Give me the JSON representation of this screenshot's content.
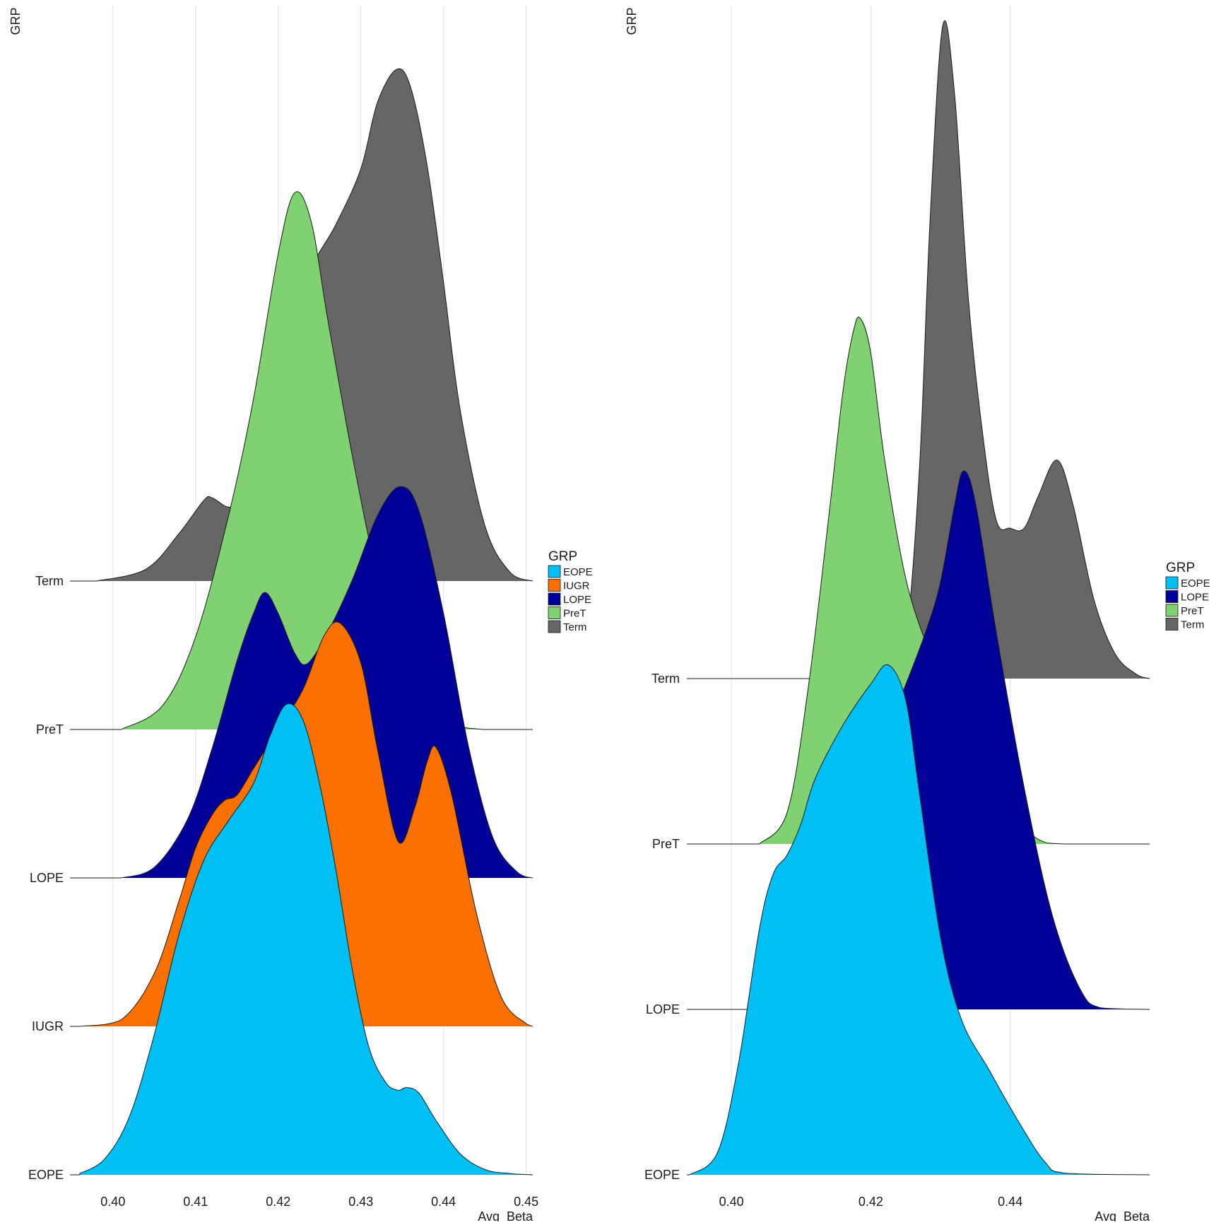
{
  "chart_data": [
    {
      "type": "ridgeline-density",
      "ylabel": "GRP",
      "xlabel": "Avg_Beta",
      "xlim": [
        0.3948,
        0.4508
      ],
      "xticks": [
        0.4,
        0.41,
        0.42,
        0.43,
        0.44,
        0.45
      ],
      "tick_labels": [
        "0.40",
        "0.41",
        "0.42",
        "0.43",
        "0.44",
        "0.45"
      ],
      "grid": "vertical-major",
      "legend": {
        "title": "GRP",
        "position": "right",
        "entries": [
          "EOPE",
          "IUGR",
          "LOPE",
          "PreT",
          "Term"
        ]
      },
      "series": [
        {
          "name": "EOPE",
          "color": "#00BFF5",
          "density_peaks": [
            {
              "x": 0.421,
              "height": 3.56
            },
            {
              "x": 0.4355,
              "height": 0.66
            }
          ],
          "points": [
            [
              0.396,
              0.01
            ],
            [
              0.399,
              0.12
            ],
            [
              0.402,
              0.44
            ],
            [
              0.405,
              1.06
            ],
            [
              0.408,
              1.82
            ],
            [
              0.411,
              2.38
            ],
            [
              0.414,
              2.68
            ],
            [
              0.417,
              2.96
            ],
            [
              0.419,
              3.32
            ],
            [
              0.421,
              3.56
            ],
            [
              0.423,
              3.44
            ],
            [
              0.425,
              2.96
            ],
            [
              0.427,
              2.3
            ],
            [
              0.429,
              1.54
            ],
            [
              0.431,
              0.96
            ],
            [
              0.433,
              0.7
            ],
            [
              0.4345,
              0.64
            ],
            [
              0.4355,
              0.66
            ],
            [
              0.437,
              0.62
            ],
            [
              0.439,
              0.42
            ],
            [
              0.442,
              0.16
            ],
            [
              0.445,
              0.04
            ],
            [
              0.448,
              0.01
            ],
            [
              0.4508,
              0.0
            ]
          ]
        },
        {
          "name": "IUGR",
          "color": "#F97000",
          "density_peaks": [
            {
              "x": 0.4135,
              "height": 1.71
            },
            {
              "x": 0.4275,
              "height": 3.05
            },
            {
              "x": 0.4391,
              "height": 2.11
            }
          ],
          "points": [
            [
              0.396,
              0.0
            ],
            [
              0.401,
              0.05
            ],
            [
              0.405,
              0.4
            ],
            [
              0.408,
              0.95
            ],
            [
              0.41,
              1.35
            ],
            [
              0.412,
              1.6
            ],
            [
              0.4135,
              1.71
            ],
            [
              0.415,
              1.75
            ],
            [
              0.417,
              1.95
            ],
            [
              0.42,
              2.25
            ],
            [
              0.423,
              2.55
            ],
            [
              0.4255,
              2.95
            ],
            [
              0.4275,
              3.05
            ],
            [
              0.43,
              2.75
            ],
            [
              0.432,
              2.1
            ],
            [
              0.4345,
              1.4
            ],
            [
              0.4365,
              1.65
            ],
            [
              0.438,
              2.0
            ],
            [
              0.4391,
              2.11
            ],
            [
              0.441,
              1.75
            ],
            [
              0.444,
              0.85
            ],
            [
              0.447,
              0.22
            ],
            [
              0.45,
              0.02
            ],
            [
              0.4508,
              0.0
            ]
          ]
        },
        {
          "name": "LOPE",
          "color": "#000099",
          "density_peaks": [
            {
              "x": 0.4184,
              "height": 2.16
            },
            {
              "x": 0.4347,
              "height": 2.96
            }
          ],
          "points": [
            [
              0.401,
              0.0
            ],
            [
              0.405,
              0.08
            ],
            [
              0.409,
              0.44
            ],
            [
              0.412,
              0.98
            ],
            [
              0.415,
              1.64
            ],
            [
              0.417,
              2.0
            ],
            [
              0.4184,
              2.16
            ],
            [
              0.42,
              2.0
            ],
            [
              0.422,
              1.7
            ],
            [
              0.4235,
              1.62
            ],
            [
              0.426,
              1.86
            ],
            [
              0.429,
              2.26
            ],
            [
              0.432,
              2.74
            ],
            [
              0.4347,
              2.96
            ],
            [
              0.437,
              2.78
            ],
            [
              0.44,
              2.0
            ],
            [
              0.443,
              1.0
            ],
            [
              0.446,
              0.3
            ],
            [
              0.449,
              0.04
            ],
            [
              0.4508,
              0.0
            ]
          ]
        },
        {
          "name": "PreT",
          "color": "#7FD172",
          "density_peaks": [
            {
              "x": 0.422,
              "height": 4.06
            }
          ],
          "points": [
            [
              0.401,
              0.0
            ],
            [
              0.406,
              0.18
            ],
            [
              0.41,
              0.7
            ],
            [
              0.414,
              1.62
            ],
            [
              0.417,
              2.5
            ],
            [
              0.42,
              3.6
            ],
            [
              0.422,
              4.06
            ],
            [
              0.424,
              3.84
            ],
            [
              0.426,
              3.1
            ],
            [
              0.429,
              2.06
            ],
            [
              0.432,
              1.16
            ],
            [
              0.435,
              0.55
            ],
            [
              0.438,
              0.18
            ],
            [
              0.441,
              0.04
            ],
            [
              0.445,
              0.0
            ],
            [
              0.4508,
              0.0
            ]
          ]
        },
        {
          "name": "Term",
          "color": "#666666",
          "density_peaks": [
            {
              "x": 0.412,
              "height": 0.63
            },
            {
              "x": 0.4343,
              "height": 3.87
            }
          ],
          "points": [
            [
              0.398,
              0.0
            ],
            [
              0.404,
              0.09
            ],
            [
              0.408,
              0.36
            ],
            [
              0.411,
              0.61
            ],
            [
              0.412,
              0.63
            ],
            [
              0.414,
              0.56
            ],
            [
              0.416,
              0.62
            ],
            [
              0.419,
              1.22
            ],
            [
              0.423,
              2.22
            ],
            [
              0.427,
              2.7
            ],
            [
              0.43,
              3.12
            ],
            [
              0.432,
              3.62
            ],
            [
              0.4343,
              3.87
            ],
            [
              0.436,
              3.74
            ],
            [
              0.438,
              3.15
            ],
            [
              0.44,
              2.26
            ],
            [
              0.442,
              1.3
            ],
            [
              0.445,
              0.42
            ],
            [
              0.448,
              0.07
            ],
            [
              0.4508,
              0.0
            ]
          ]
        }
      ]
    },
    {
      "type": "ridgeline-density",
      "ylabel": "GRP",
      "xlabel": "Avg_Beta",
      "xlim": [
        0.3936,
        0.46
      ],
      "xticks": [
        0.4,
        0.42,
        0.44
      ],
      "tick_labels": [
        "0.40",
        "0.42",
        "0.44"
      ],
      "grid": "vertical-major",
      "legend": {
        "title": "GRP",
        "position": "right",
        "entries": [
          "EOPE",
          "LOPE",
          "PreT",
          "Term"
        ]
      },
      "series": [
        {
          "name": "EOPE",
          "color": "#00BFF5",
          "density_peaks": [
            {
              "x": 0.4225,
              "height": 3.22
            }
          ],
          "points": [
            [
              0.394,
              0.0
            ],
            [
              0.398,
              0.14
            ],
            [
              0.401,
              0.7
            ],
            [
              0.404,
              1.55
            ],
            [
              0.406,
              1.9
            ],
            [
              0.408,
              2.02
            ],
            [
              0.41,
              2.22
            ],
            [
              0.412,
              2.5
            ],
            [
              0.416,
              2.84
            ],
            [
              0.42,
              3.1
            ],
            [
              0.4225,
              3.22
            ],
            [
              0.425,
              3.0
            ],
            [
              0.427,
              2.4
            ],
            [
              0.43,
              1.5
            ],
            [
              0.433,
              0.98
            ],
            [
              0.437,
              0.66
            ],
            [
              0.441,
              0.35
            ],
            [
              0.445,
              0.08
            ],
            [
              0.448,
              0.01
            ],
            [
              0.46,
              0.0
            ]
          ]
        },
        {
          "name": "LOPE",
          "color": "#000099",
          "density_peaks": [
            {
              "x": 0.4333,
              "height": 3.4
            }
          ],
          "points": [
            [
              0.407,
              0.0
            ],
            [
              0.412,
              0.12
            ],
            [
              0.416,
              0.75
            ],
            [
              0.42,
              1.5
            ],
            [
              0.425,
              2.05
            ],
            [
              0.428,
              2.4
            ],
            [
              0.43,
              2.7
            ],
            [
              0.432,
              3.18
            ],
            [
              0.4333,
              3.4
            ],
            [
              0.435,
              3.2
            ],
            [
              0.438,
              2.38
            ],
            [
              0.442,
              1.4
            ],
            [
              0.446,
              0.6
            ],
            [
              0.45,
              0.13
            ],
            [
              0.453,
              0.01
            ],
            [
              0.46,
              0.0
            ]
          ]
        },
        {
          "name": "PreT",
          "color": "#7FD172",
          "density_peaks": [
            {
              "x": 0.4185,
              "height": 3.32
            }
          ],
          "points": [
            [
              0.404,
              0.0
            ],
            [
              0.408,
              0.2
            ],
            [
              0.411,
              0.98
            ],
            [
              0.414,
              2.08
            ],
            [
              0.416,
              2.86
            ],
            [
              0.4175,
              3.24
            ],
            [
              0.4185,
              3.32
            ],
            [
              0.42,
              3.1
            ],
            [
              0.422,
              2.42
            ],
            [
              0.425,
              1.68
            ],
            [
              0.428,
              1.26
            ],
            [
              0.43,
              1.08
            ],
            [
              0.433,
              0.92
            ],
            [
              0.436,
              0.62
            ],
            [
              0.44,
              0.22
            ],
            [
              0.444,
              0.03
            ],
            [
              0.448,
              0.0
            ],
            [
              0.46,
              0.0
            ]
          ]
        },
        {
          "name": "Term",
          "color": "#666666",
          "density_peaks": [
            {
              "x": 0.4303,
              "height": 4.12
            },
            {
              "x": 0.4467,
              "height": 1.38
            }
          ],
          "points": [
            [
              0.42,
              0.0
            ],
            [
              0.423,
              0.05
            ],
            [
              0.425,
              0.22
            ],
            [
              0.427,
              1.35
            ],
            [
              0.4285,
              2.9
            ],
            [
              0.4303,
              4.12
            ],
            [
              0.432,
              3.7
            ],
            [
              0.434,
              2.4
            ],
            [
              0.436,
              1.56
            ],
            [
              0.438,
              1.0
            ],
            [
              0.44,
              0.95
            ],
            [
              0.442,
              0.95
            ],
            [
              0.444,
              1.15
            ],
            [
              0.4467,
              1.38
            ],
            [
              0.449,
              1.1
            ],
            [
              0.452,
              0.5
            ],
            [
              0.455,
              0.16
            ],
            [
              0.458,
              0.03
            ],
            [
              0.46,
              0.0
            ]
          ]
        }
      ]
    }
  ]
}
